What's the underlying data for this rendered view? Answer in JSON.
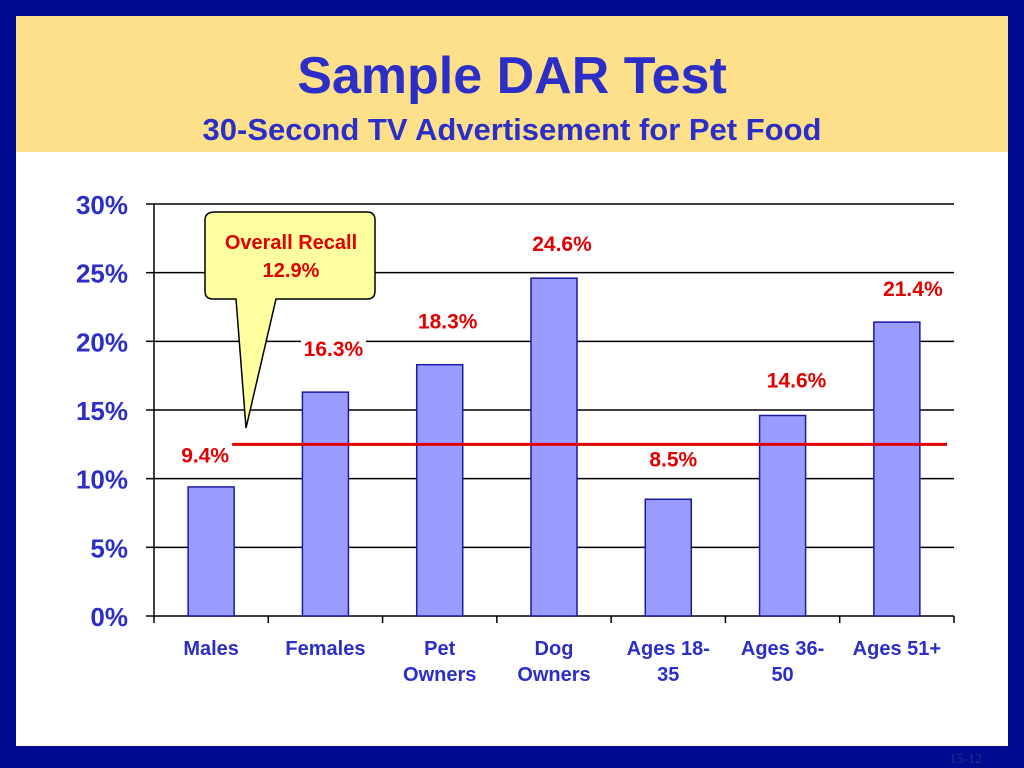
{
  "slide": {
    "title": "Sample DAR Test",
    "subtitle": "30-Second TV Advertisement for Pet Food",
    "page_number": "15-12"
  },
  "colors": {
    "frame": "#000b8f",
    "header": "#ffe08a",
    "title": "#2b2fc7",
    "bar_fill": "#9a9cff",
    "bar_stroke": "#1a1aa0",
    "value_label": "#e00000",
    "reference_line": "#e00000",
    "callout_fill": "#ffffa0"
  },
  "chart_data": {
    "type": "bar",
    "categories": [
      [
        "Males"
      ],
      [
        "Females"
      ],
      [
        "Pet",
        "Owners"
      ],
      [
        "Dog",
        "Owners"
      ],
      [
        "Ages 18-",
        "35"
      ],
      [
        "Ages 36-",
        "50"
      ],
      [
        "Ages 51+"
      ]
    ],
    "values": [
      9.4,
      16.3,
      18.3,
      24.6,
      8.5,
      14.6,
      21.4
    ],
    "value_labels": [
      "9.4%",
      "16.3%",
      "18.3%",
      "24.6%",
      "8.5%",
      "14.6%",
      "21.4%"
    ],
    "y_ticks": [
      "0%",
      "5%",
      "10%",
      "15%",
      "20%",
      "25%",
      "30%"
    ],
    "ylim": [
      0,
      30
    ],
    "grid": true,
    "reference_line": {
      "value": 12.5
    },
    "callout": {
      "line1": "Overall Recall",
      "line2": "12.9%"
    }
  }
}
